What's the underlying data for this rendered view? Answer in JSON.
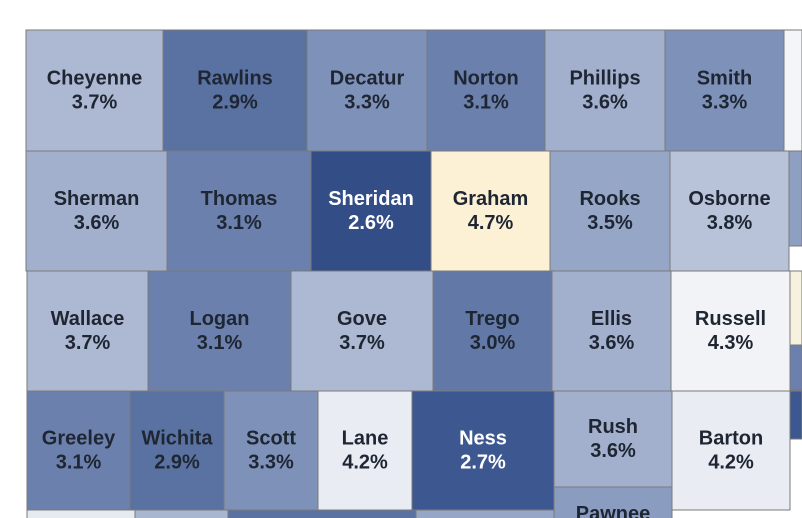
{
  "map": {
    "counties": [
      {
        "name": "Cheyenne",
        "value": "3.7%",
        "fill": "#adb9d3",
        "text": "#1f2633"
      },
      {
        "name": "Rawlins",
        "value": "2.9%",
        "fill": "#5a72a1",
        "text": "#1f2633"
      },
      {
        "name": "Decatur",
        "value": "3.3%",
        "fill": "#7e92b9",
        "text": "#1f2633"
      },
      {
        "name": "Norton",
        "value": "3.1%",
        "fill": "#6b80ac",
        "text": "#1f2633"
      },
      {
        "name": "Phillips",
        "value": "3.6%",
        "fill": "#a2b0cd",
        "text": "#1f2633"
      },
      {
        "name": "Smith",
        "value": "3.3%",
        "fill": "#7e92b9",
        "text": "#1f2633"
      },
      {
        "name": "Sherman",
        "value": "3.6%",
        "fill": "#a2b0cd",
        "text": "#1f2633"
      },
      {
        "name": "Thomas",
        "value": "3.1%",
        "fill": "#6b80ac",
        "text": "#1f2633"
      },
      {
        "name": "Sheridan",
        "value": "2.6%",
        "fill": "#334d87",
        "text": "#ffffff"
      },
      {
        "name": "Graham",
        "value": "4.7%",
        "fill": "#fdf1d5",
        "text": "#1f2633"
      },
      {
        "name": "Rooks",
        "value": "3.5%",
        "fill": "#96a6c6",
        "text": "#1f2633"
      },
      {
        "name": "Osborne",
        "value": "3.8%",
        "fill": "#b8c2d9",
        "text": "#1f2633"
      },
      {
        "name": "Wallace",
        "value": "3.7%",
        "fill": "#adb9d3",
        "text": "#1f2633"
      },
      {
        "name": "Logan",
        "value": "3.1%",
        "fill": "#6b80ac",
        "text": "#1f2633"
      },
      {
        "name": "Gove",
        "value": "3.7%",
        "fill": "#adb9d3",
        "text": "#1f2633"
      },
      {
        "name": "Trego",
        "value": "3.0%",
        "fill": "#6279a7",
        "text": "#1f2633"
      },
      {
        "name": "Ellis",
        "value": "3.6%",
        "fill": "#a2b0cd",
        "text": "#1f2633"
      },
      {
        "name": "Russell",
        "value": "4.3%",
        "fill": "#f2f3f6",
        "text": "#1f2633"
      },
      {
        "name": "Greeley",
        "value": "3.1%",
        "fill": "#6b80ac",
        "text": "#1f2633"
      },
      {
        "name": "Wichita",
        "value": "2.9%",
        "fill": "#5a72a1",
        "text": "#1f2633"
      },
      {
        "name": "Scott",
        "value": "3.3%",
        "fill": "#7e92b9",
        "text": "#1f2633"
      },
      {
        "name": "Lane",
        "value": "4.2%",
        "fill": "#e9ecf2",
        "text": "#1f2633"
      },
      {
        "name": "Ness",
        "value": "2.7%",
        "fill": "#3d5890",
        "text": "#ffffff"
      },
      {
        "name": "Rush",
        "value": "3.6%",
        "fill": "#a2b0cd",
        "text": "#1f2633"
      },
      {
        "name": "Barton",
        "value": "4.2%",
        "fill": "#e9ecf2",
        "text": "#1f2633"
      },
      {
        "name": "Pawnee",
        "value": "",
        "fill": "#8a9dc0",
        "text": "#1f2633"
      }
    ],
    "partial_fills": [
      "#f4f5f8",
      "#8ea0c2",
      "#f7f1e0",
      "#6b80ac",
      "#3d5890",
      "#e6eaf1",
      "#a9b6d0",
      "#5a72a1",
      "#96a6c6"
    ]
  }
}
